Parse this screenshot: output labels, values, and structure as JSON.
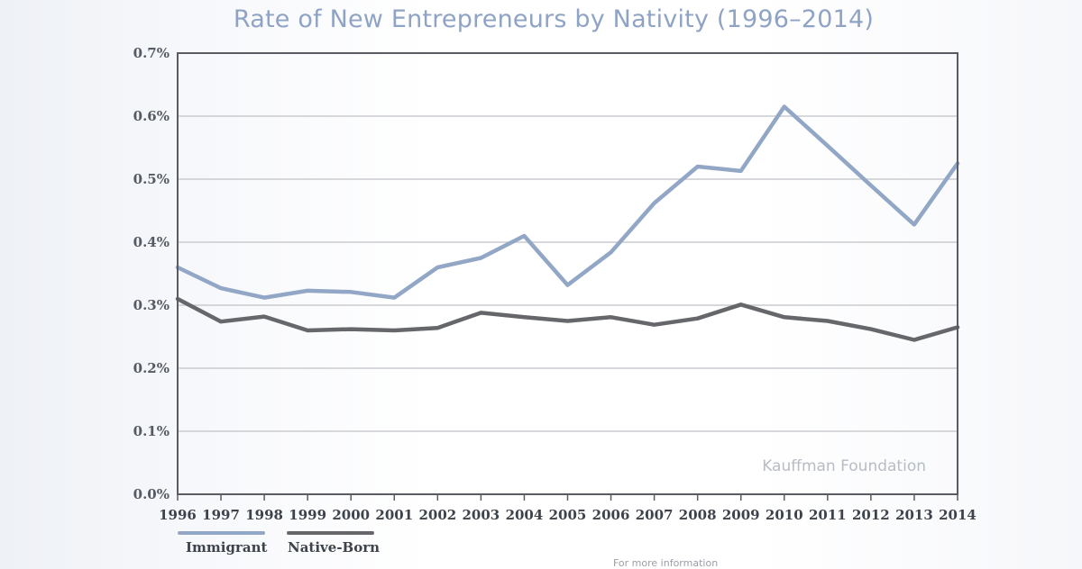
{
  "chart_data": {
    "type": "line",
    "title": "Rate of New Entrepreneurs by Nativity (1996–2014)",
    "categories": [
      "1996",
      "1997",
      "1998",
      "1999",
      "2000",
      "2001",
      "2002",
      "2003",
      "2004",
      "2005",
      "2006",
      "2007",
      "2008",
      "2009",
      "2010",
      "2011",
      "2012",
      "2013",
      "2014"
    ],
    "y_ticks": [
      0,
      0.1,
      0.2,
      0.3,
      0.4,
      0.5,
      0.6,
      0.7
    ],
    "y_tick_labels": [
      "0.0%",
      "0.1%",
      "0.2%",
      "0.3%",
      "0.4%",
      "0.5%",
      "0.6%",
      "0.7%"
    ],
    "ylim": [
      0,
      0.7
    ],
    "xlabel": "",
    "ylabel": "",
    "grid": true,
    "series": [
      {
        "name": "Immigrant",
        "color": "#92a6c6",
        "values": [
          0.36,
          0.327,
          0.312,
          0.323,
          0.321,
          0.312,
          0.36,
          0.375,
          0.41,
          0.332,
          0.384,
          0.462,
          0.52,
          0.513,
          0.615,
          0.553,
          0.49,
          0.428,
          0.525
        ]
      },
      {
        "name": "Native-Born",
        "color": "#66676b",
        "values": [
          0.31,
          0.274,
          0.282,
          0.26,
          0.262,
          0.26,
          0.264,
          0.288,
          0.281,
          0.275,
          0.281,
          0.269,
          0.279,
          0.301,
          0.281,
          0.275,
          0.262,
          0.245,
          0.265
        ]
      }
    ],
    "annotation": "Kauffman Foundation"
  },
  "footnote": "For more information"
}
